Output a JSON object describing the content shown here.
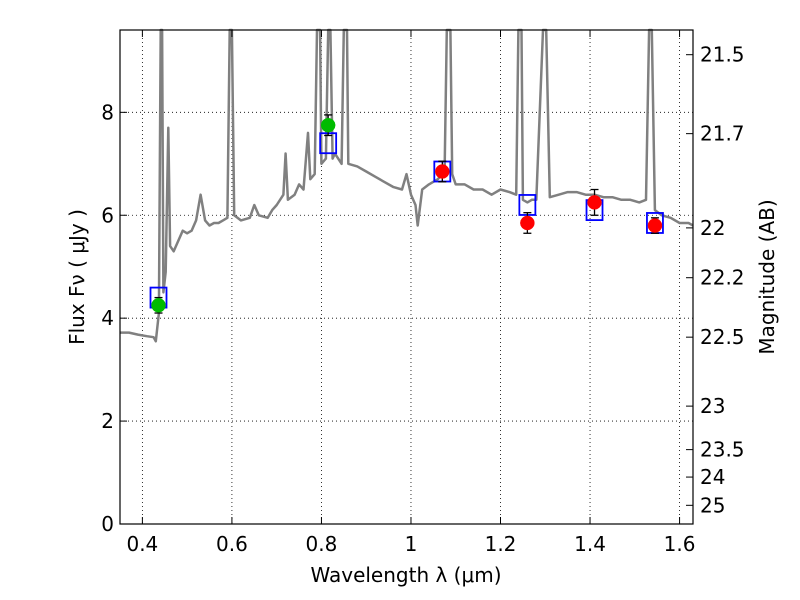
{
  "chart_data": {
    "type": "line",
    "xlabel": "Wavelength  λ (μm)",
    "ylabel": "Flux  Fν  ( μJy )",
    "y2label": "Magnitude (AB)",
    "xlim": [
      0.35,
      1.63
    ],
    "ylim": [
      0,
      9.6
    ],
    "grid": true,
    "x_ticks": [
      {
        "value": 0.4,
        "label": "0.4"
      },
      {
        "value": 0.6,
        "label": "0.6"
      },
      {
        "value": 0.8,
        "label": "0.8"
      },
      {
        "value": 1.0,
        "label": "1"
      },
      {
        "value": 1.2,
        "label": "1.2"
      },
      {
        "value": 1.4,
        "label": "1.4"
      },
      {
        "value": 1.6,
        "label": "1.6"
      }
    ],
    "y_ticks": [
      {
        "value": 0,
        "label": "0"
      },
      {
        "value": 2,
        "label": "2"
      },
      {
        "value": 4,
        "label": "4"
      },
      {
        "value": 6,
        "label": "6"
      },
      {
        "value": 8,
        "label": "8"
      }
    ],
    "y2_ticks": [
      {
        "value": 21.5,
        "label": "21.5"
      },
      {
        "value": 21.7,
        "label": "21.7"
      },
      {
        "value": 22.0,
        "label": "22"
      },
      {
        "value": 22.2,
        "label": "22.2"
      },
      {
        "value": 22.5,
        "label": "22.5"
      },
      {
        "value": 23.0,
        "label": "23"
      },
      {
        "value": 23.5,
        "label": "23.5"
      },
      {
        "value": 24.0,
        "label": "24"
      },
      {
        "value": 25.0,
        "label": "25"
      }
    ],
    "series": [
      {
        "kind": "model-spectrum",
        "color": "#808080",
        "points": [
          [
            0.35,
            3.72
          ],
          [
            0.37,
            3.72
          ],
          [
            0.39,
            3.68
          ],
          [
            0.41,
            3.65
          ],
          [
            0.425,
            3.63
          ],
          [
            0.43,
            3.55
          ],
          [
            0.437,
            4.1
          ],
          [
            0.441,
            9.6
          ],
          [
            0.444,
            9.6
          ],
          [
            0.447,
            4.5
          ],
          [
            0.452,
            4.9
          ],
          [
            0.458,
            7.7
          ],
          [
            0.462,
            5.4
          ],
          [
            0.47,
            5.3
          ],
          [
            0.48,
            5.5
          ],
          [
            0.49,
            5.7
          ],
          [
            0.5,
            5.65
          ],
          [
            0.51,
            5.7
          ],
          [
            0.52,
            5.9
          ],
          [
            0.53,
            6.4
          ],
          [
            0.54,
            5.9
          ],
          [
            0.55,
            5.8
          ],
          [
            0.56,
            5.85
          ],
          [
            0.57,
            5.85
          ],
          [
            0.58,
            5.9
          ],
          [
            0.59,
            5.95
          ],
          [
            0.595,
            9.6
          ],
          [
            0.6,
            9.6
          ],
          [
            0.605,
            6.0
          ],
          [
            0.62,
            5.9
          ],
          [
            0.64,
            5.95
          ],
          [
            0.65,
            6.2
          ],
          [
            0.66,
            6.0
          ],
          [
            0.68,
            5.95
          ],
          [
            0.69,
            6.1
          ],
          [
            0.7,
            6.2
          ],
          [
            0.715,
            6.4
          ],
          [
            0.72,
            7.2
          ],
          [
            0.725,
            6.3
          ],
          [
            0.74,
            6.4
          ],
          [
            0.75,
            6.6
          ],
          [
            0.76,
            6.5
          ],
          [
            0.77,
            7.6
          ],
          [
            0.775,
            6.7
          ],
          [
            0.785,
            6.8
          ],
          [
            0.79,
            9.6
          ],
          [
            0.797,
            9.6
          ],
          [
            0.8,
            7.0
          ],
          [
            0.81,
            7.1
          ],
          [
            0.815,
            9.6
          ],
          [
            0.82,
            9.6
          ],
          [
            0.825,
            7.1
          ],
          [
            0.83,
            7.2
          ],
          [
            0.845,
            7.0
          ],
          [
            0.85,
            9.6
          ],
          [
            0.857,
            9.6
          ],
          [
            0.86,
            7.0
          ],
          [
            0.88,
            6.95
          ],
          [
            0.9,
            6.85
          ],
          [
            0.92,
            6.75
          ],
          [
            0.94,
            6.65
          ],
          [
            0.96,
            6.55
          ],
          [
            0.98,
            6.5
          ],
          [
            0.99,
            6.8
          ],
          [
            1.0,
            6.4
          ],
          [
            1.01,
            6.2
          ],
          [
            1.015,
            5.8
          ],
          [
            1.025,
            6.5
          ],
          [
            1.04,
            6.6
          ],
          [
            1.06,
            6.7
          ],
          [
            1.075,
            6.85
          ],
          [
            1.08,
            9.6
          ],
          [
            1.088,
            9.6
          ],
          [
            1.092,
            6.8
          ],
          [
            1.1,
            6.6
          ],
          [
            1.12,
            6.6
          ],
          [
            1.14,
            6.5
          ],
          [
            1.16,
            6.5
          ],
          [
            1.18,
            6.4
          ],
          [
            1.2,
            6.5
          ],
          [
            1.22,
            6.45
          ],
          [
            1.235,
            6.4
          ],
          [
            1.24,
            9.6
          ],
          [
            1.247,
            9.6
          ],
          [
            1.25,
            6.3
          ],
          [
            1.26,
            6.25
          ],
          [
            1.27,
            6.3
          ],
          [
            1.28,
            6.3
          ],
          [
            1.295,
            9.6
          ],
          [
            1.302,
            9.6
          ],
          [
            1.31,
            6.35
          ],
          [
            1.33,
            6.4
          ],
          [
            1.35,
            6.45
          ],
          [
            1.37,
            6.45
          ],
          [
            1.39,
            6.4
          ],
          [
            1.41,
            6.4
          ],
          [
            1.43,
            6.35
          ],
          [
            1.45,
            6.35
          ],
          [
            1.47,
            6.3
          ],
          [
            1.49,
            6.3
          ],
          [
            1.51,
            6.25
          ],
          [
            1.525,
            6.3
          ],
          [
            1.532,
            9.6
          ],
          [
            1.538,
            9.6
          ],
          [
            1.545,
            6.1
          ],
          [
            1.56,
            6.0
          ],
          [
            1.58,
            5.95
          ],
          [
            1.6,
            5.85
          ],
          [
            1.62,
            5.85
          ],
          [
            1.63,
            5.8
          ]
        ]
      },
      {
        "kind": "synthetic-photometry",
        "marker": "open-square",
        "color": "#0000ff",
        "points": [
          {
            "x": 0.436,
            "y": 4.4
          },
          {
            "x": 0.815,
            "y": 7.4
          },
          {
            "x": 1.07,
            "y": 6.85
          },
          {
            "x": 1.26,
            "y": 6.2
          },
          {
            "x": 1.41,
            "y": 6.1
          },
          {
            "x": 1.545,
            "y": 5.85
          }
        ]
      },
      {
        "kind": "observed-optical",
        "marker": "filled-circle",
        "color": "#00bb00",
        "points": [
          {
            "x": 0.436,
            "y": 4.25,
            "err": 0.15
          },
          {
            "x": 0.815,
            "y": 7.75,
            "err": 0.2
          }
        ]
      },
      {
        "kind": "observed-nir",
        "marker": "filled-circle",
        "color": "#ff0000",
        "points": [
          {
            "x": 1.07,
            "y": 6.85,
            "err": 0.2
          },
          {
            "x": 1.26,
            "y": 5.85,
            "err": 0.2
          },
          {
            "x": 1.41,
            "y": 6.25,
            "err": 0.25
          },
          {
            "x": 1.545,
            "y": 5.8,
            "err": 0.15
          }
        ]
      }
    ]
  }
}
